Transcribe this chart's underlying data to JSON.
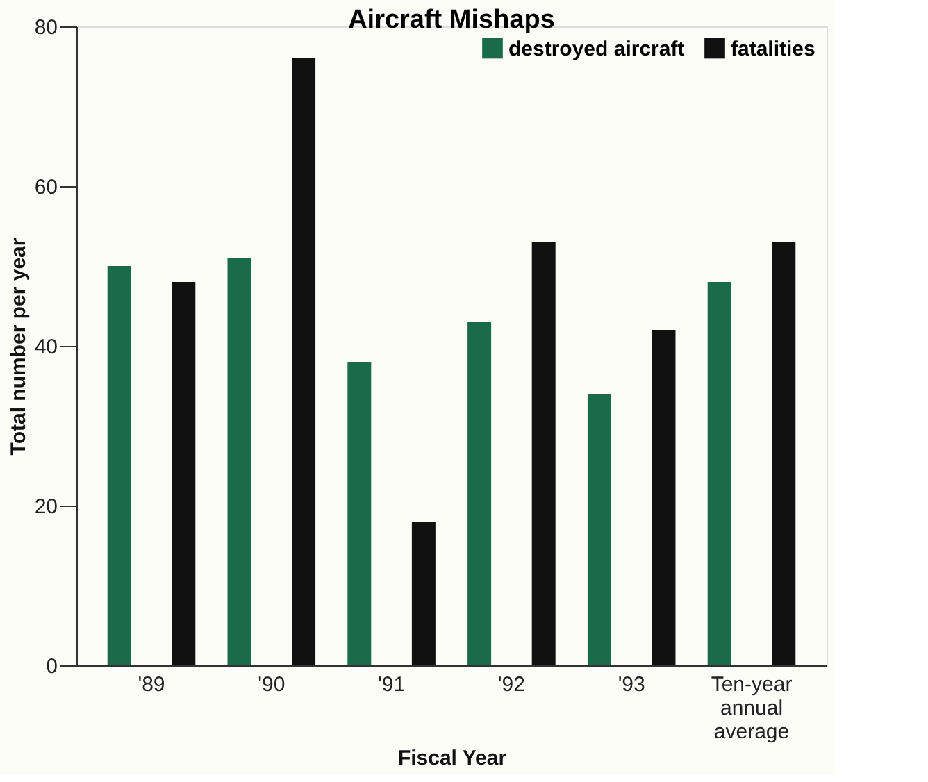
{
  "chart_data": {
    "type": "bar",
    "title": "Aircraft Mishaps",
    "xlabel": "Fiscal Year",
    "ylabel": "Total number per year",
    "categories": [
      "'89",
      "'90",
      "'91",
      "'92",
      "'93",
      "Ten-year annual average"
    ],
    "series": [
      {
        "name": "destroyed aircraft",
        "color": "#1a6b4a",
        "values": [
          50,
          51,
          38,
          43,
          34,
          48
        ]
      },
      {
        "name": "fatalities",
        "color": "#111111",
        "values": [
          48,
          76,
          18,
          53,
          42,
          53
        ]
      }
    ],
    "ylim": [
      0,
      80
    ],
    "yticks": [
      0,
      20,
      40,
      60,
      80
    ],
    "grid": false,
    "legend": "top right"
  }
}
